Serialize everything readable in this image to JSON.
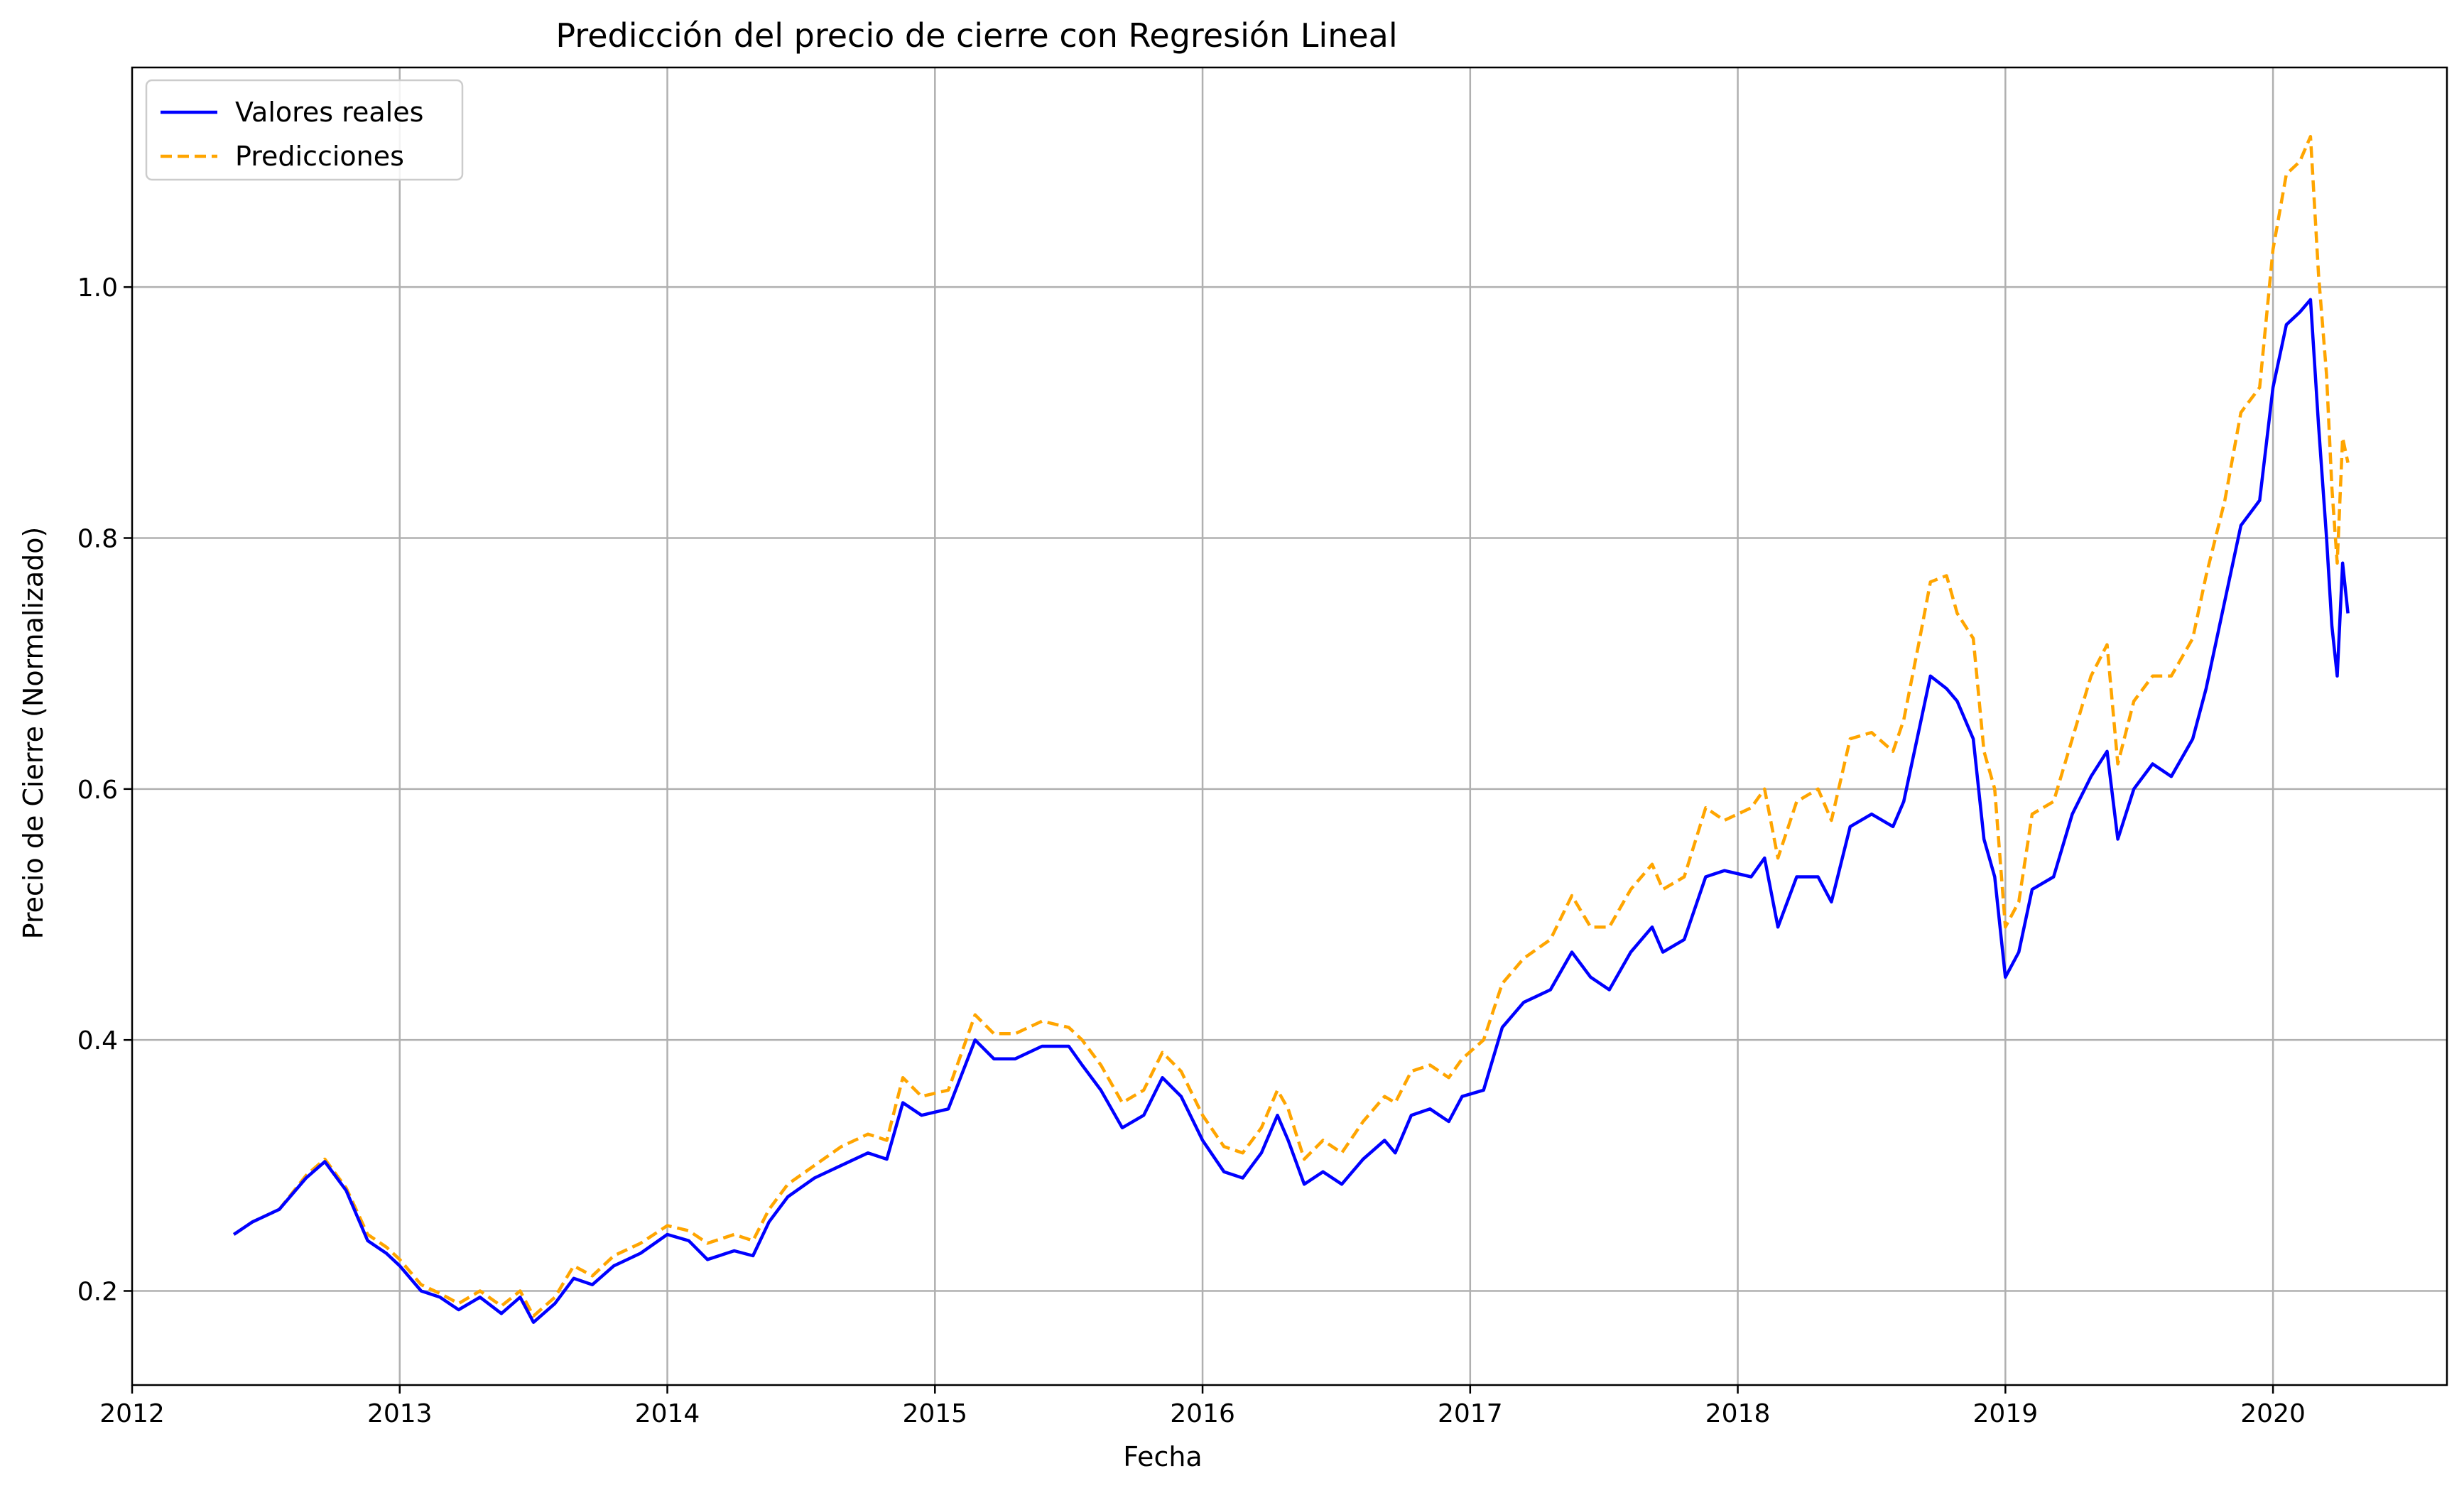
{
  "chart_data": {
    "type": "line",
    "title": "Predicción del precio de cierre con Regresión Lineal",
    "xlabel": "Fecha",
    "ylabel": "Precio de Cierre (Normalizado)",
    "xlim": [
      2012.0,
      2020.65
    ],
    "ylim": [
      0.125,
      1.175
    ],
    "x_ticks": [
      2012,
      2013,
      2014,
      2015,
      2016,
      2017,
      2018,
      2019,
      2020
    ],
    "x_tick_labels": [
      "2012",
      "2013",
      "2014",
      "2015",
      "2016",
      "2017",
      "2018",
      "2019",
      "2020"
    ],
    "y_ticks": [
      0.2,
      0.4,
      0.6,
      0.8,
      1.0
    ],
    "y_tick_labels": [
      "0.2",
      "0.4",
      "0.6",
      "0.8",
      "1.0"
    ],
    "grid": true,
    "legend_position": "top-left",
    "series": [
      {
        "name": "Valores reales",
        "color": "#0000ff",
        "style": "solid",
        "points": [
          [
            2012.38,
            0.245
          ],
          [
            2012.45,
            0.255
          ],
          [
            2012.55,
            0.265
          ],
          [
            2012.65,
            0.29
          ],
          [
            2012.72,
            0.303
          ],
          [
            2012.8,
            0.28
          ],
          [
            2012.88,
            0.24
          ],
          [
            2012.95,
            0.23
          ],
          [
            2013.0,
            0.22
          ],
          [
            2013.08,
            0.2
          ],
          [
            2013.15,
            0.195
          ],
          [
            2013.22,
            0.185
          ],
          [
            2013.3,
            0.195
          ],
          [
            2013.38,
            0.182
          ],
          [
            2013.45,
            0.195
          ],
          [
            2013.5,
            0.175
          ],
          [
            2013.58,
            0.19
          ],
          [
            2013.65,
            0.21
          ],
          [
            2013.72,
            0.205
          ],
          [
            2013.8,
            0.22
          ],
          [
            2013.9,
            0.23
          ],
          [
            2014.0,
            0.245
          ],
          [
            2014.08,
            0.24
          ],
          [
            2014.15,
            0.225
          ],
          [
            2014.25,
            0.232
          ],
          [
            2014.32,
            0.228
          ],
          [
            2014.38,
            0.255
          ],
          [
            2014.45,
            0.275
          ],
          [
            2014.55,
            0.29
          ],
          [
            2014.65,
            0.3
          ],
          [
            2014.75,
            0.31
          ],
          [
            2014.82,
            0.305
          ],
          [
            2014.88,
            0.35
          ],
          [
            2014.95,
            0.34
          ],
          [
            2015.05,
            0.345
          ],
          [
            2015.15,
            0.4
          ],
          [
            2015.22,
            0.385
          ],
          [
            2015.3,
            0.385
          ],
          [
            2015.4,
            0.395
          ],
          [
            2015.5,
            0.395
          ],
          [
            2015.55,
            0.38
          ],
          [
            2015.62,
            0.36
          ],
          [
            2015.7,
            0.33
          ],
          [
            2015.78,
            0.34
          ],
          [
            2015.85,
            0.37
          ],
          [
            2015.92,
            0.355
          ],
          [
            2016.0,
            0.32
          ],
          [
            2016.08,
            0.295
          ],
          [
            2016.15,
            0.29
          ],
          [
            2016.22,
            0.31
          ],
          [
            2016.28,
            0.34
          ],
          [
            2016.32,
            0.32
          ],
          [
            2016.38,
            0.285
          ],
          [
            2016.45,
            0.295
          ],
          [
            2016.52,
            0.285
          ],
          [
            2016.6,
            0.305
          ],
          [
            2016.68,
            0.32
          ],
          [
            2016.72,
            0.31
          ],
          [
            2016.78,
            0.34
          ],
          [
            2016.85,
            0.345
          ],
          [
            2016.92,
            0.335
          ],
          [
            2016.97,
            0.355
          ],
          [
            2017.05,
            0.36
          ],
          [
            2017.12,
            0.41
          ],
          [
            2017.2,
            0.43
          ],
          [
            2017.3,
            0.44
          ],
          [
            2017.38,
            0.47
          ],
          [
            2017.45,
            0.45
          ],
          [
            2017.52,
            0.44
          ],
          [
            2017.6,
            0.47
          ],
          [
            2017.68,
            0.49
          ],
          [
            2017.72,
            0.47
          ],
          [
            2017.8,
            0.48
          ],
          [
            2017.88,
            0.53
          ],
          [
            2017.95,
            0.535
          ],
          [
            2018.05,
            0.53
          ],
          [
            2018.1,
            0.545
          ],
          [
            2018.15,
            0.49
          ],
          [
            2018.22,
            0.53
          ],
          [
            2018.3,
            0.53
          ],
          [
            2018.35,
            0.51
          ],
          [
            2018.42,
            0.57
          ],
          [
            2018.5,
            0.58
          ],
          [
            2018.58,
            0.57
          ],
          [
            2018.62,
            0.59
          ],
          [
            2018.68,
            0.65
          ],
          [
            2018.72,
            0.69
          ],
          [
            2018.78,
            0.68
          ],
          [
            2018.82,
            0.67
          ],
          [
            2018.88,
            0.64
          ],
          [
            2018.92,
            0.56
          ],
          [
            2018.96,
            0.53
          ],
          [
            2019.0,
            0.45
          ],
          [
            2019.05,
            0.47
          ],
          [
            2019.1,
            0.52
          ],
          [
            2019.18,
            0.53
          ],
          [
            2019.25,
            0.58
          ],
          [
            2019.32,
            0.61
          ],
          [
            2019.38,
            0.63
          ],
          [
            2019.42,
            0.56
          ],
          [
            2019.48,
            0.6
          ],
          [
            2019.55,
            0.62
          ],
          [
            2019.62,
            0.61
          ],
          [
            2019.7,
            0.64
          ],
          [
            2019.75,
            0.68
          ],
          [
            2019.82,
            0.75
          ],
          [
            2019.88,
            0.81
          ],
          [
            2019.95,
            0.83
          ],
          [
            2020.0,
            0.92
          ],
          [
            2020.05,
            0.97
          ],
          [
            2020.1,
            0.98
          ],
          [
            2020.14,
            0.99
          ],
          [
            2020.17,
            0.89
          ],
          [
            2020.2,
            0.8
          ],
          [
            2020.22,
            0.73
          ],
          [
            2020.24,
            0.69
          ],
          [
            2020.26,
            0.78
          ],
          [
            2020.28,
            0.74
          ]
        ]
      },
      {
        "name": "Predicciones",
        "color": "#ffa500",
        "style": "dashed",
        "points": [
          [
            2012.38,
            0.245
          ],
          [
            2012.45,
            0.255
          ],
          [
            2012.55,
            0.265
          ],
          [
            2012.65,
            0.292
          ],
          [
            2012.72,
            0.305
          ],
          [
            2012.8,
            0.282
          ],
          [
            2012.88,
            0.245
          ],
          [
            2012.95,
            0.235
          ],
          [
            2013.0,
            0.225
          ],
          [
            2013.08,
            0.205
          ],
          [
            2013.15,
            0.198
          ],
          [
            2013.22,
            0.19
          ],
          [
            2013.3,
            0.2
          ],
          [
            2013.38,
            0.188
          ],
          [
            2013.45,
            0.2
          ],
          [
            2013.5,
            0.18
          ],
          [
            2013.58,
            0.195
          ],
          [
            2013.65,
            0.22
          ],
          [
            2013.72,
            0.212
          ],
          [
            2013.8,
            0.228
          ],
          [
            2013.9,
            0.238
          ],
          [
            2014.0,
            0.252
          ],
          [
            2014.08,
            0.248
          ],
          [
            2014.15,
            0.238
          ],
          [
            2014.25,
            0.245
          ],
          [
            2014.32,
            0.24
          ],
          [
            2014.38,
            0.265
          ],
          [
            2014.45,
            0.285
          ],
          [
            2014.55,
            0.3
          ],
          [
            2014.65,
            0.315
          ],
          [
            2014.75,
            0.325
          ],
          [
            2014.82,
            0.32
          ],
          [
            2014.88,
            0.37
          ],
          [
            2014.95,
            0.355
          ],
          [
            2015.05,
            0.36
          ],
          [
            2015.15,
            0.42
          ],
          [
            2015.22,
            0.405
          ],
          [
            2015.3,
            0.405
          ],
          [
            2015.4,
            0.415
          ],
          [
            2015.5,
            0.41
          ],
          [
            2015.55,
            0.4
          ],
          [
            2015.62,
            0.38
          ],
          [
            2015.7,
            0.35
          ],
          [
            2015.78,
            0.36
          ],
          [
            2015.85,
            0.39
          ],
          [
            2015.92,
            0.375
          ],
          [
            2016.0,
            0.34
          ],
          [
            2016.08,
            0.315
          ],
          [
            2016.15,
            0.31
          ],
          [
            2016.22,
            0.33
          ],
          [
            2016.28,
            0.36
          ],
          [
            2016.32,
            0.345
          ],
          [
            2016.38,
            0.305
          ],
          [
            2016.45,
            0.32
          ],
          [
            2016.52,
            0.31
          ],
          [
            2016.6,
            0.335
          ],
          [
            2016.68,
            0.355
          ],
          [
            2016.72,
            0.35
          ],
          [
            2016.78,
            0.375
          ],
          [
            2016.85,
            0.38
          ],
          [
            2016.92,
            0.37
          ],
          [
            2016.97,
            0.385
          ],
          [
            2017.05,
            0.4
          ],
          [
            2017.12,
            0.445
          ],
          [
            2017.2,
            0.465
          ],
          [
            2017.3,
            0.48
          ],
          [
            2017.38,
            0.515
          ],
          [
            2017.45,
            0.49
          ],
          [
            2017.52,
            0.49
          ],
          [
            2017.6,
            0.52
          ],
          [
            2017.68,
            0.54
          ],
          [
            2017.72,
            0.52
          ],
          [
            2017.8,
            0.53
          ],
          [
            2017.88,
            0.585
          ],
          [
            2017.95,
            0.575
          ],
          [
            2018.05,
            0.585
          ],
          [
            2018.1,
            0.6
          ],
          [
            2018.15,
            0.545
          ],
          [
            2018.22,
            0.59
          ],
          [
            2018.3,
            0.6
          ],
          [
            2018.35,
            0.575
          ],
          [
            2018.42,
            0.64
          ],
          [
            2018.5,
            0.645
          ],
          [
            2018.58,
            0.63
          ],
          [
            2018.62,
            0.655
          ],
          [
            2018.68,
            0.72
          ],
          [
            2018.72,
            0.765
          ],
          [
            2018.78,
            0.77
          ],
          [
            2018.82,
            0.74
          ],
          [
            2018.88,
            0.72
          ],
          [
            2018.92,
            0.63
          ],
          [
            2018.96,
            0.6
          ],
          [
            2019.0,
            0.49
          ],
          [
            2019.05,
            0.51
          ],
          [
            2019.1,
            0.58
          ],
          [
            2019.18,
            0.59
          ],
          [
            2019.25,
            0.64
          ],
          [
            2019.32,
            0.69
          ],
          [
            2019.38,
            0.715
          ],
          [
            2019.42,
            0.62
          ],
          [
            2019.48,
            0.67
          ],
          [
            2019.55,
            0.69
          ],
          [
            2019.62,
            0.69
          ],
          [
            2019.7,
            0.72
          ],
          [
            2019.75,
            0.77
          ],
          [
            2019.82,
            0.83
          ],
          [
            2019.88,
            0.9
          ],
          [
            2019.95,
            0.92
          ],
          [
            2020.0,
            1.03
          ],
          [
            2020.05,
            1.09
          ],
          [
            2020.1,
            1.1
          ],
          [
            2020.14,
            1.12
          ],
          [
            2020.17,
            1.01
          ],
          [
            2020.2,
            0.93
          ],
          [
            2020.22,
            0.84
          ],
          [
            2020.24,
            0.78
          ],
          [
            2020.26,
            0.88
          ],
          [
            2020.28,
            0.86
          ]
        ]
      }
    ]
  }
}
